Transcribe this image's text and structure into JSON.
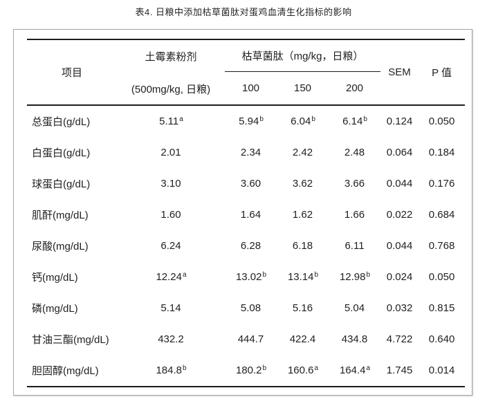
{
  "title": "表4. 日粮中添加枯草菌肽对蛋鸡血清生化指标的影响",
  "table": {
    "col_item": "项目",
    "col_control_line1": "土霉素粉剂",
    "col_control_line2": "(500mg/kg, 日粮)",
    "group_header": "枯草菌肽（mg/kg，日粮）",
    "doses": [
      "100",
      "150",
      "200"
    ],
    "col_sem": "SEM",
    "col_p": "P 值",
    "rows": [
      {
        "label": "总蛋白(g/dL)",
        "control": {
          "v": "5.11",
          "s": "a"
        },
        "d100": {
          "v": "5.94",
          "s": "b"
        },
        "d150": {
          "v": "6.04",
          "s": "b"
        },
        "d200": {
          "v": "6.14",
          "s": "b"
        },
        "sem": "0.124",
        "p": "0.050"
      },
      {
        "label": "白蛋白(g/dL)",
        "control": {
          "v": "2.01"
        },
        "d100": {
          "v": "2.34"
        },
        "d150": {
          "v": "2.42"
        },
        "d200": {
          "v": "2.48"
        },
        "sem": "0.064",
        "p": "0.184"
      },
      {
        "label": "球蛋白(g/dL)",
        "control": {
          "v": "3.10"
        },
        "d100": {
          "v": "3.60"
        },
        "d150": {
          "v": "3.62"
        },
        "d200": {
          "v": "3.66"
        },
        "sem": "0.044",
        "p": "0.176"
      },
      {
        "label": "肌酐(mg/dL)",
        "control": {
          "v": "1.60"
        },
        "d100": {
          "v": "1.64"
        },
        "d150": {
          "v": "1.62"
        },
        "d200": {
          "v": "1.66"
        },
        "sem": "0.022",
        "p": "0.684"
      },
      {
        "label": "尿酸(mg/dL)",
        "control": {
          "v": "6.24"
        },
        "d100": {
          "v": "6.28"
        },
        "d150": {
          "v": "6.18"
        },
        "d200": {
          "v": "6.11"
        },
        "sem": "0.044",
        "p": "0.768"
      },
      {
        "label": "钙(mg/dL)",
        "control": {
          "v": "12.24",
          "s": "a"
        },
        "d100": {
          "v": "13.02",
          "s": "b"
        },
        "d150": {
          "v": "13.14",
          "s": "b"
        },
        "d200": {
          "v": "12.98",
          "s": "b"
        },
        "sem": "0.024",
        "p": "0.050"
      },
      {
        "label": "磷(mg/dL)",
        "control": {
          "v": "5.14"
        },
        "d100": {
          "v": "5.08"
        },
        "d150": {
          "v": "5.16"
        },
        "d200": {
          "v": "5.04"
        },
        "sem": "0.032",
        "p": "0.815"
      },
      {
        "label": "甘油三酯(mg/dL)",
        "control": {
          "v": "432.2"
        },
        "d100": {
          "v": "444.7"
        },
        "d150": {
          "v": "422.4"
        },
        "d200": {
          "v": "434.8"
        },
        "sem": "4.722",
        "p": "0.640"
      },
      {
        "label": "胆固醇(mg/dL)",
        "control": {
          "v": "184.8",
          "s": "b"
        },
        "d100": {
          "v": "180.2",
          "s": "b"
        },
        "d150": {
          "v": "160.6",
          "s": "a"
        },
        "d200": {
          "v": "164.4",
          "s": "a"
        },
        "sem": "1.745",
        "p": "0.014"
      }
    ]
  }
}
